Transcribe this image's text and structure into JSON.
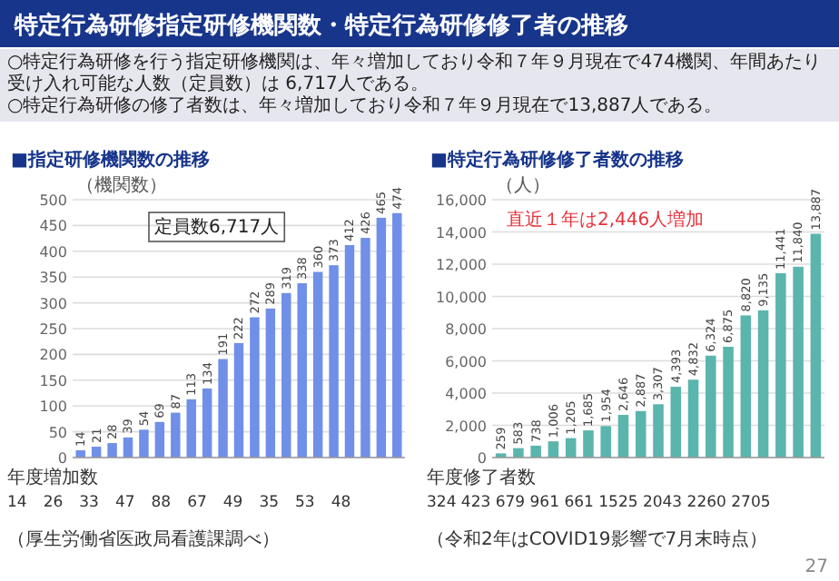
{
  "chart_data": [
    {
      "type": "bar",
      "title": "■指定研修機関数の推移",
      "ylabel": "（機関数）",
      "categories": [
        null,
        null,
        null,
        null,
        null,
        null,
        null,
        null,
        null,
        null,
        null,
        null,
        null,
        null,
        null,
        null,
        null,
        null,
        null,
        null,
        null
      ],
      "values": [
        14,
        21,
        28,
        39,
        54,
        69,
        87,
        113,
        134,
        191,
        222,
        272,
        289,
        319,
        338,
        360,
        373,
        412,
        426,
        465,
        474
      ],
      "color": "#6f8fe8",
      "ylim": [
        0,
        500
      ],
      "yticks": [
        0,
        50,
        100,
        150,
        200,
        250,
        300,
        350,
        400,
        450,
        500
      ],
      "grid": "y",
      "tick_labels": "y",
      "data_labels": true,
      "annotations": [
        "特定行為研修指定研修機関数・特定行為研修修了者の推移",
        "○特定行為研修を行う指定研修機関は、年々増加しており令和７年９月現在で474機関、年間あたり受け入れ可能な人数（定員数）は 6,717人である。",
        "○特定行為研修の修了者数は、年々増加しており令和７年９月現在で13,887人である。",
        "定員数6,717人",
        "年度増加数",
        "14　26　33　47　88　67　49　35　53　48",
        "（厚生労働省医政局看護課調べ）"
      ]
    },
    {
      "type": "bar",
      "title": "■特定行為研修修了者数の推移",
      "ylabel": "（人）",
      "categories": [
        null,
        null,
        null,
        null,
        null,
        null,
        null,
        null,
        null,
        null,
        null,
        null,
        null,
        null,
        null,
        null,
        null,
        null,
        null
      ],
      "values": [
        259,
        583,
        738,
        1006,
        1205,
        1685,
        1954,
        2646,
        2887,
        3307,
        4393,
        4832,
        6324,
        6875,
        8820,
        9135,
        11441,
        11840,
        13887
      ],
      "value_labels": [
        "259",
        "583",
        "738",
        "1,006",
        "1,205",
        "1,685",
        "1,954",
        "2,646",
        "2,887",
        "3,307",
        "4,393",
        "4,832",
        "6,324",
        "6,875",
        "8,820",
        "9,135",
        "11,441",
        "11,840",
        "13,887"
      ],
      "color": "#5ab5ad",
      "ylim": [
        0,
        16000
      ],
      "yticks": [
        0,
        {
          "value": 2000,
          "label": "2,000"
        },
        {
          "value": 4000,
          "label": "4,000"
        },
        {
          "value": 6000,
          "label": "6,000"
        },
        {
          "value": 8000,
          "label": "8,000"
        },
        {
          "value": 10000,
          "label": "10,000"
        },
        {
          "value": 12000,
          "label": "12,000"
        },
        {
          "value": 14000,
          "label": "14,000"
        },
        {
          "value": 16000,
          "label": "16,000"
        }
      ],
      "grid": "y",
      "tick_labels": "y",
      "annotations": [
        "直近１年は2,446人増加",
        "年度修了者数",
        "324 423 679 961 661 1525 2043 2260 2705",
        "（令和2年はCOVID19影響で7月末時点）",
        "27"
      ]
    }
  ]
}
